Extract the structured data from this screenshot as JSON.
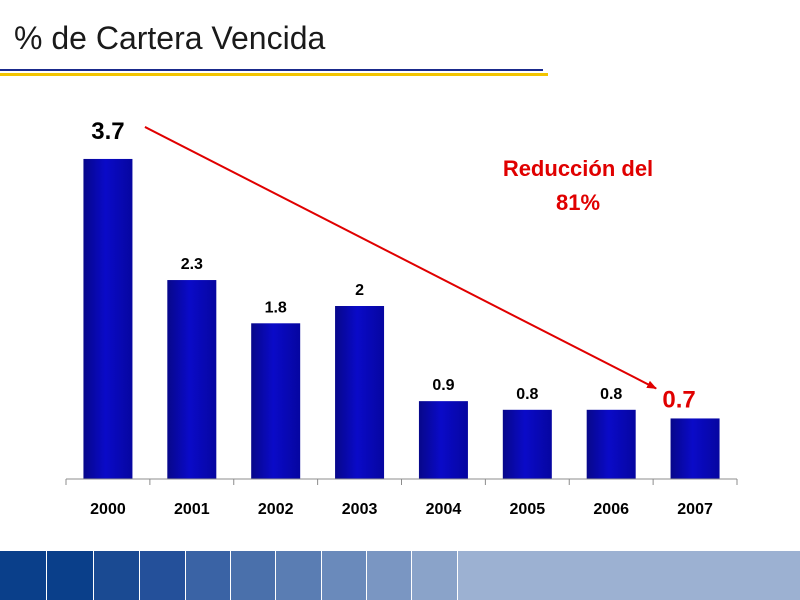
{
  "slide": {
    "title": "% de Cartera Vencida"
  },
  "chart_data": {
    "type": "bar",
    "categories": [
      "2000",
      "2001",
      "2002",
      "2003",
      "2004",
      "2005",
      "2006",
      "2007"
    ],
    "values": [
      3.7,
      2.3,
      1.8,
      2,
      0.9,
      0.8,
      0.8,
      0.7
    ],
    "value_labels": [
      "3.7",
      "2.3",
      "1.8",
      "2",
      "0.9",
      "0.8",
      "0.8",
      "0.7"
    ],
    "ylim": [
      0,
      4
    ],
    "grid": false,
    "bar_color": "#0a0ab4",
    "annotation": {
      "lines": [
        "Reducción del",
        "81%"
      ],
      "color": "#e00000"
    },
    "trend_arrow": {
      "from": "2000",
      "to": "2007",
      "color": "#e00000"
    }
  },
  "footer": {
    "colors": [
      "#0a3f8a",
      "#0a3f8a",
      "#1a4a92",
      "#24509a",
      "#3a63a5",
      "#4a70ab",
      "#5a7db3",
      "#6a8abb",
      "#7a96c2",
      "#8aa3c9",
      "#9cb1d2"
    ]
  }
}
